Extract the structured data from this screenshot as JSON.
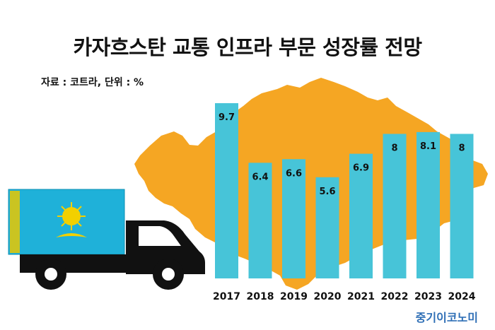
{
  "header": {
    "title": "카자흐스탄 교통 인프라 부문 성장률 전망",
    "source": "자료 : 코트라, 단위 : %"
  },
  "footer": {
    "brand": "중기이코노미"
  },
  "colors": {
    "bar": "#47c4d8",
    "map": "#f5a623",
    "text": "#111111",
    "brand": "#2f6fb6",
    "flag": "#1fb1d9",
    "flag_emblem": "#f2d000",
    "truck": "#111111"
  },
  "illustration": {
    "truck_icon": "truck-icon",
    "flag_icon": "kazakhstan-flag-icon",
    "map_icon": "kazakhstan-map-icon"
  },
  "chart_data": {
    "type": "bar",
    "title": "카자흐스탄 교통 인프라 부문 성장률 전망",
    "unit": "%",
    "categories": [
      "2017",
      "2018",
      "2019",
      "2020",
      "2021",
      "2022",
      "2023",
      "2024"
    ],
    "values": [
      9.7,
      6.4,
      6.6,
      5.6,
      6.9,
      8,
      8.1,
      8
    ],
    "value_labels": [
      "9.7",
      "6.4",
      "6.6",
      "5.6",
      "6.9",
      "8",
      "8.1",
      "8"
    ],
    "grid": false,
    "legend": "none"
  }
}
